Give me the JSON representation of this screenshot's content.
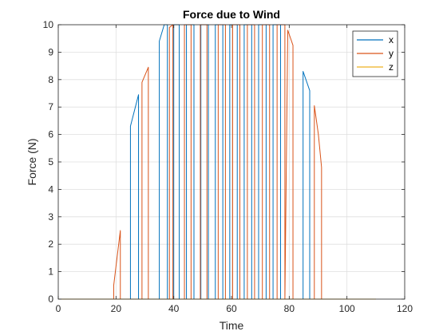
{
  "chart_data": {
    "type": "line",
    "title": "Force due to Wind",
    "xlabel": "Time",
    "ylabel": "Force (N)",
    "xlim": [
      0,
      120
    ],
    "ylim": [
      0,
      10
    ],
    "xticks": [
      0,
      20,
      40,
      60,
      80,
      100,
      120
    ],
    "yticks": [
      0,
      1,
      2,
      3,
      4,
      5,
      6,
      7,
      8,
      9,
      10
    ],
    "grid": true,
    "legend_position": "top-right",
    "series": [
      {
        "name": "x",
        "color": "#0072BD",
        "x": [
          0,
          25.0,
          25.0,
          27.8,
          27.8,
          35.0,
          35.0,
          36.7,
          37.8,
          37.8,
          40.0,
          40.0,
          41.9,
          41.9,
          44.4,
          44.4,
          47.0,
          47.0,
          49.4,
          49.4,
          52.0,
          52.0,
          54.4,
          54.4,
          57.0,
          57.0,
          59.4,
          59.4,
          62.0,
          62.0,
          64.4,
          64.4,
          67.0,
          67.0,
          69.4,
          69.4,
          72.0,
          72.0,
          74.4,
          74.4,
          77.0,
          77.0,
          84.8,
          84.8,
          87.1,
          87.1,
          110
        ],
        "y": [
          0,
          0,
          6.3,
          7.45,
          0,
          0,
          9.4,
          10,
          10,
          0,
          0,
          10,
          10,
          0,
          0,
          10,
          10,
          0,
          0,
          10,
          10,
          0,
          0,
          10,
          10,
          0,
          0,
          10,
          10,
          0,
          0,
          10,
          10,
          0,
          0,
          10,
          10,
          0,
          0,
          10,
          10,
          0,
          0,
          8.3,
          7.6,
          0,
          0
        ]
      },
      {
        "name": "y",
        "color": "#D95319",
        "x": [
          0,
          19.2,
          19.2,
          21.5,
          21.5,
          29.0,
          29.0,
          31.2,
          31.2,
          38.5,
          38.5,
          39.7,
          39.7,
          43.7,
          43.7,
          46.0,
          46.0,
          49.2,
          49.2,
          51.5,
          51.5,
          55.4,
          55.4,
          57.9,
          57.9,
          60.4,
          60.4,
          62.9,
          62.9,
          65.5,
          65.5,
          68.0,
          68.0,
          70.7,
          70.7,
          73.2,
          73.2,
          75.8,
          75.8,
          78.5,
          78.5,
          79.5,
          81.3,
          81.3,
          88.7,
          88.7,
          90.1,
          91.2,
          91.2,
          110
        ],
        "y": [
          0,
          0,
          0.5,
          2.5,
          0,
          0,
          7.9,
          8.45,
          0,
          0,
          9.9,
          10,
          0,
          0,
          10,
          10,
          0,
          0,
          10,
          10,
          0,
          0,
          10,
          10,
          0,
          0,
          10,
          10,
          0,
          0,
          10,
          10,
          0,
          0,
          10,
          10,
          0,
          0,
          10,
          10,
          0,
          9.8,
          9.25,
          0,
          0,
          7.05,
          6.0,
          4.8,
          0,
          0
        ]
      },
      {
        "name": "z",
        "color": "#EDB120",
        "x": [
          0,
          110
        ],
        "y": [
          0,
          0
        ]
      }
    ]
  }
}
